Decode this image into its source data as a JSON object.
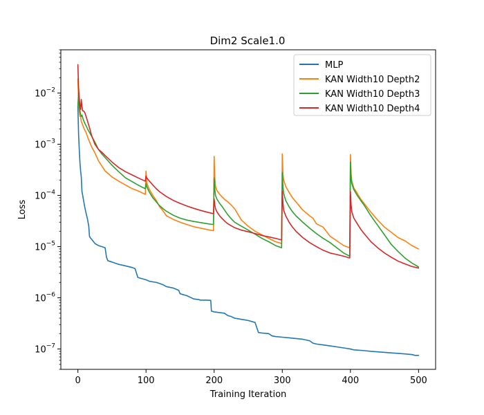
{
  "chart_data": {
    "type": "line",
    "title": "Dim2 Scale1.0",
    "xlabel": "Training Iteration",
    "ylabel": "Loss",
    "yscale": "log",
    "xlim": [
      -25,
      525
    ],
    "ylim": [
      4e-08,
      0.07
    ],
    "grid": false,
    "legend_position": "top-right",
    "x_ticks": [
      0,
      100,
      200,
      300,
      400,
      500
    ],
    "x_tick_labels": [
      "0",
      "100",
      "200",
      "300",
      "400",
      "500"
    ],
    "y_ticks": [
      1e-07,
      1e-06,
      1e-05,
      0.0001,
      0.001,
      0.01
    ],
    "y_tick_base": [
      "10",
      "10",
      "10",
      "10",
      "10",
      "10"
    ],
    "y_tick_exp": [
      "−7",
      "−6",
      "−5",
      "−4",
      "−3",
      "−2"
    ],
    "series": [
      {
        "name": "MLP",
        "color": "#1f77b4",
        "x": [
          0,
          1,
          2,
          3,
          4,
          5,
          6,
          8,
          10,
          12,
          14,
          16,
          17,
          18,
          20,
          22,
          25,
          30,
          35,
          40,
          42,
          44,
          50,
          60,
          70,
          80,
          84,
          88,
          90,
          95,
          100,
          105,
          110,
          115,
          120,
          125,
          130,
          140,
          148,
          150,
          160,
          170,
          178,
          180,
          190,
          195,
          196,
          200,
          210,
          215,
          220,
          225,
          230,
          240,
          250,
          260,
          265,
          270,
          280,
          285,
          290,
          300,
          310,
          320,
          330,
          340,
          345,
          350,
          360,
          370,
          380,
          390,
          400,
          405,
          410,
          420,
          430,
          440,
          450,
          460,
          470,
          480,
          490,
          495,
          500
        ],
        "values": [
          0.0055,
          0.0016,
          0.0008,
          0.00045,
          0.0003,
          0.00023,
          0.00012,
          8.5e-05,
          6e-05,
          4.5e-05,
          3.5e-05,
          2.5e-05,
          1.6e-05,
          1.5e-05,
          1.4e-05,
          1.3e-05,
          1.15e-05,
          1.05e-05,
          1e-05,
          9.5e-06,
          6.2e-06,
          5.3e-06,
          5e-06,
          4.5e-06,
          4.2e-06,
          3.9e-06,
          3.7e-06,
          2.5e-06,
          2.45e-06,
          2.35e-06,
          2.25e-06,
          2.1e-06,
          2.05e-06,
          2e-06,
          1.9e-06,
          1.8e-06,
          1.65e-06,
          1.55e-06,
          1.4e-06,
          1.2e-06,
          1.1e-06,
          9.5e-07,
          9.2e-07,
          9e-07,
          9e-07,
          8.9e-07,
          5.5e-07,
          5.3e-07,
          5.1e-07,
          5e-07,
          4.5e-07,
          4.3e-07,
          4e-07,
          3.8e-07,
          3.6e-07,
          3.3e-07,
          2.1e-07,
          2.05e-07,
          2e-07,
          1.8e-07,
          1.75e-07,
          1.7e-07,
          1.65e-07,
          1.6e-07,
          1.55e-07,
          1.45e-07,
          1.3e-07,
          1.25e-07,
          1.2e-07,
          1.15e-07,
          1.1e-07,
          1.05e-07,
          1e-07,
          9.6e-08,
          9.5e-08,
          9.3e-08,
          9e-08,
          8.8e-08,
          8.6e-08,
          8.4e-08,
          8.2e-08,
          8e-08,
          7.8e-08,
          7.5e-08,
          7.5e-08
        ]
      },
      {
        "name": "KAN Width10 Depth2",
        "color": "#ff7f0e",
        "x": [
          0,
          1,
          2,
          3,
          4,
          5,
          6,
          8,
          10,
          12,
          15,
          20,
          25,
          30,
          35,
          40,
          50,
          60,
          70,
          80,
          90,
          99,
          100,
          101,
          103,
          105,
          110,
          115,
          120,
          125,
          130,
          140,
          150,
          160,
          170,
          180,
          190,
          199,
          200,
          201,
          202,
          204,
          208,
          212,
          216,
          220,
          225,
          230,
          240,
          250,
          260,
          270,
          280,
          290,
          299,
          300,
          301,
          302,
          305,
          310,
          315,
          320,
          330,
          340,
          345,
          350,
          360,
          370,
          380,
          390,
          399,
          400,
          401,
          402,
          405,
          410,
          415,
          420,
          430,
          440,
          450,
          460,
          470,
          480,
          490,
          500
        ],
        "values": [
          0.019,
          0.007,
          0.0045,
          0.0035,
          0.0035,
          0.0028,
          0.0026,
          0.0022,
          0.0019,
          0.0017,
          0.0013,
          0.0009,
          0.00068,
          0.00048,
          0.00038,
          0.0003,
          0.00023,
          0.00019,
          0.00016,
          0.000135,
          0.00012,
          0.000105,
          0.0003,
          0.00018,
          0.00015,
          0.00013,
          0.0001,
          8e-05,
          6e-05,
          5e-05,
          4e-05,
          3.4e-05,
          3e-05,
          2.7e-05,
          2.45e-05,
          2.3e-05,
          2.15e-05,
          2.05e-05,
          0.00058,
          0.00022,
          0.00015,
          0.000125,
          0.000105,
          9.3e-05,
          8.2e-05,
          7.5e-05,
          6.5e-05,
          5.5e-05,
          3.3e-05,
          2.5e-05,
          2e-05,
          1.7e-05,
          1.45e-05,
          1.25e-05,
          1.15e-05,
          0.00065,
          0.00026,
          0.0002,
          0.00015,
          0.000115,
          9e-05,
          7.5e-05,
          5.2e-05,
          4e-05,
          3.6e-05,
          2.8e-05,
          2.4e-05,
          1.6e-05,
          1.3e-05,
          1.05e-05,
          9.5e-06,
          0.00063,
          0.00026,
          0.00019,
          0.00014,
          0.00011,
          8.5e-05,
          7e-05,
          4.7e-05,
          3.3e-05,
          2.4e-05,
          1.9e-05,
          1.5e-05,
          1.3e-05,
          1.05e-05,
          9e-06
        ]
      },
      {
        "name": "KAN Width10 Depth3",
        "color": "#2ca02c",
        "x": [
          0,
          1,
          2,
          3,
          4,
          5,
          6,
          8,
          10,
          12,
          15,
          20,
          25,
          30,
          35,
          40,
          50,
          60,
          70,
          80,
          90,
          99,
          100,
          101,
          103,
          105,
          110,
          115,
          120,
          125,
          130,
          140,
          150,
          160,
          170,
          180,
          190,
          199,
          200,
          201,
          202,
          204,
          208,
          212,
          216,
          220,
          225,
          230,
          240,
          250,
          260,
          270,
          280,
          290,
          299,
          300,
          301,
          302,
          305,
          310,
          315,
          320,
          330,
          340,
          350,
          360,
          370,
          380,
          390,
          399,
          400,
          401,
          402,
          405,
          410,
          415,
          420,
          430,
          440,
          450,
          460,
          470,
          480,
          490,
          500
        ],
        "values": [
          0.0055,
          0.01,
          0.006,
          0.0045,
          0.0038,
          0.0035,
          0.0037,
          0.003,
          0.0026,
          0.0023,
          0.0019,
          0.00145,
          0.0011,
          0.0008,
          0.00065,
          0.00055,
          0.00039,
          0.00029,
          0.00022,
          0.000185,
          0.000155,
          0.000135,
          0.00017,
          0.00015,
          0.00013,
          0.000115,
          9e-05,
          7.5e-05,
          6.3e-05,
          5.5e-05,
          4.9e-05,
          4.1e-05,
          3.6e-05,
          3.3e-05,
          3.1e-05,
          2.95e-05,
          2.8e-05,
          2.7e-05,
          0.00022,
          0.00013,
          0.0001,
          8.5e-05,
          7e-05,
          6e-05,
          5e-05,
          4.2e-05,
          3.5e-05,
          3e-05,
          2.5e-05,
          2.1e-05,
          1.75e-05,
          1.45e-05,
          1.25e-05,
          1.05e-05,
          9.5e-06,
          0.00028,
          0.00015,
          0.00011,
          8e-05,
          6e-05,
          4.8e-05,
          4e-05,
          3e-05,
          2.3e-05,
          1.8e-05,
          1.45e-05,
          1.2e-05,
          9.5e-06,
          7.5e-06,
          6.5e-06,
          0.00045,
          0.00022,
          0.00017,
          0.00013,
          0.0001,
          8e-05,
          6.5e-05,
          4e-05,
          2.6e-05,
          1.7e-05,
          1.1e-05,
          8e-06,
          6e-06,
          4.8e-06,
          4e-06
        ]
      },
      {
        "name": "KAN Width10 Depth4",
        "color": "#d62728",
        "x": [
          0,
          1,
          2,
          3,
          4,
          5,
          6,
          7,
          8,
          10,
          12,
          15,
          18,
          20,
          25,
          30,
          35,
          40,
          50,
          60,
          70,
          80,
          90,
          99,
          100,
          101,
          103,
          105,
          110,
          115,
          120,
          130,
          140,
          150,
          160,
          170,
          180,
          190,
          199,
          200,
          201,
          202,
          204,
          208,
          212,
          216,
          220,
          225,
          230,
          240,
          250,
          260,
          270,
          280,
          290,
          299,
          300,
          301,
          302,
          305,
          310,
          315,
          320,
          330,
          340,
          350,
          360,
          370,
          380,
          390,
          399,
          400,
          401,
          402,
          405,
          410,
          415,
          420,
          430,
          440,
          450,
          460,
          470,
          480,
          490,
          500
        ],
        "values": [
          0.036,
          0.013,
          0.008,
          0.0055,
          0.0048,
          0.0075,
          0.0055,
          0.0045,
          0.0045,
          0.0042,
          0.0035,
          0.0026,
          0.0019,
          0.0015,
          0.001,
          0.0008,
          0.0007,
          0.0006,
          0.00045,
          0.00035,
          0.00029,
          0.00025,
          0.000215,
          0.00019,
          0.00024,
          0.00022,
          0.000205,
          0.00019,
          0.00016,
          0.000135,
          0.000118,
          9.5e-05,
          8e-05,
          7e-05,
          6.2e-05,
          5.6e-05,
          5.1e-05,
          4.7e-05,
          4.4e-05,
          8.5e-05,
          6.5e-05,
          5.5e-05,
          4.8e-05,
          4e-05,
          3.5e-05,
          3.1e-05,
          2.8e-05,
          2.55e-05,
          2.35e-05,
          2.1e-05,
          1.95e-05,
          1.8e-05,
          1.65e-05,
          1.55e-05,
          1.45e-05,
          1.35e-05,
          0.00012,
          7e-05,
          5.2e-05,
          4e-05,
          3e-05,
          2.4e-05,
          2e-05,
          1.5e-05,
          1.2e-05,
          1e-05,
          8.5e-06,
          7.5e-06,
          7e-06,
          6.5e-06,
          6e-06,
          0.00012,
          6.5e-05,
          4.8e-05,
          3.6e-05,
          2.8e-05,
          2.2e-05,
          1.8e-05,
          1.25e-05,
          9.5e-06,
          7.5e-06,
          6.2e-06,
          5.2e-06,
          4.6e-06,
          4.1e-06,
          3.8e-06
        ]
      }
    ]
  }
}
